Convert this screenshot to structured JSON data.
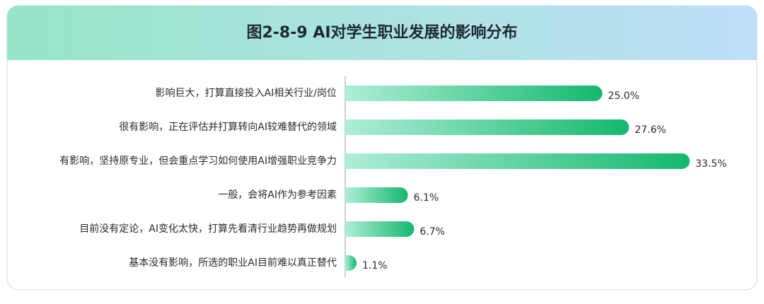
{
  "chart_data": {
    "type": "bar",
    "orientation": "horizontal",
    "title": "图2-8-9 AI对学生职业发展的影响分布",
    "categories": [
      "影响巨大，打算直接投入AI相关行业/岗位",
      "很有影响，正在评估并打算转向AI较难替代的领域",
      "有影响，坚持原专业，但会重点学习如何使用AI增强职业竞争力",
      "一般，会将AI作为参考因素",
      "目前没有定论，AI变化太快，打算先看清行业趋势再做规划",
      "基本没有影响，所选的职业AI目前难以真正替代"
    ],
    "values": [
      25.0,
      27.6,
      33.5,
      6.1,
      6.7,
      1.1
    ],
    "value_labels": [
      "25.0%",
      "27.6%",
      "33.5%",
      "6.1%",
      "6.7%",
      "1.1%"
    ],
    "color": [
      "#aeeed6",
      "#14b86e"
    ]
  }
}
